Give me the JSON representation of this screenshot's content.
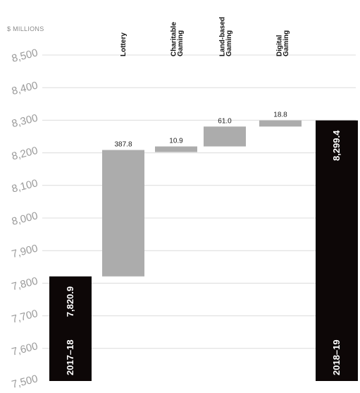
{
  "chart_data": {
    "type": "bar",
    "unit_label": "$ MILLIONS",
    "y_ticks": [
      "7,500",
      "7,600",
      "7,700",
      "7,800",
      "7,900",
      "8,000",
      "8,100",
      "8,200",
      "8,300",
      "8,400",
      "8,500"
    ],
    "ylim": [
      7500,
      8500
    ],
    "grid": true,
    "bars": [
      {
        "kind": "total",
        "label": "2017–18",
        "value_label": "7,820.9",
        "start": 7500,
        "end": 7820.9,
        "color": "#0d0707"
      },
      {
        "kind": "delta",
        "label": "Lottery",
        "value_label": "387.8",
        "start": 7820.9,
        "end": 8208.7,
        "color": "#acacac"
      },
      {
        "kind": "delta",
        "label": "Charitable Gaming",
        "value_label": "10.9",
        "start": 8208.7,
        "end": 8219.6,
        "color": "#acacac"
      },
      {
        "kind": "delta",
        "label": "Land-based Gaming",
        "value_label": "61.0",
        "start": 8219.6,
        "end": 8280.6,
        "color": "#acacac"
      },
      {
        "kind": "delta",
        "label": "Digital Gaming",
        "value_label": "18.8",
        "start": 8280.6,
        "end": 8299.4,
        "color": "#acacac"
      },
      {
        "kind": "total",
        "label": "2018–19",
        "value_label": "8,299.4",
        "start": 7500,
        "end": 8299.4,
        "color": "#0d0707"
      }
    ]
  }
}
